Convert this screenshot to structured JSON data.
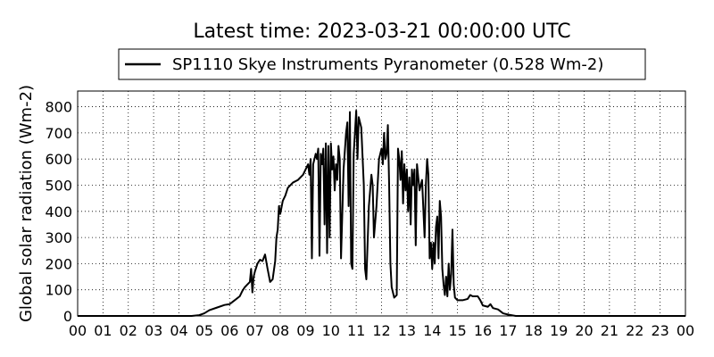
{
  "chart_data": {
    "type": "line",
    "title": "Latest time: 2023-03-21 00:00:00 UTC",
    "ylabel": "Global solar radiation (Wm-2)",
    "x": [
      0,
      4.5,
      4.8,
      5.0,
      5.2,
      5.5,
      5.8,
      6.0,
      6.2,
      6.4,
      6.5,
      6.6,
      6.7,
      6.8,
      6.85,
      6.9,
      6.95,
      7.0,
      7.1,
      7.2,
      7.3,
      7.4,
      7.5,
      7.6,
      7.7,
      7.8,
      7.85,
      7.9,
      7.95,
      8.0,
      8.1,
      8.2,
      8.3,
      8.5,
      8.7,
      8.9,
      9.0,
      9.1,
      9.15,
      9.2,
      9.25,
      9.3,
      9.4,
      9.45,
      9.5,
      9.55,
      9.6,
      9.65,
      9.7,
      9.75,
      9.8,
      9.85,
      9.9,
      9.95,
      10.0,
      10.05,
      10.1,
      10.15,
      10.2,
      10.25,
      10.3,
      10.35,
      10.4,
      10.5,
      10.6,
      10.65,
      10.7,
      10.75,
      10.8,
      10.85,
      10.9,
      10.95,
      11.0,
      11.05,
      11.1,
      11.2,
      11.3,
      11.35,
      11.4,
      11.5,
      11.6,
      11.65,
      11.7,
      11.8,
      11.9,
      12.0,
      12.05,
      12.1,
      12.15,
      12.2,
      12.25,
      12.3,
      12.35,
      12.4,
      12.5,
      12.6,
      12.65,
      12.7,
      12.75,
      12.8,
      12.85,
      12.9,
      12.95,
      13.0,
      13.05,
      13.1,
      13.15,
      13.2,
      13.25,
      13.3,
      13.35,
      13.4,
      13.5,
      13.6,
      13.7,
      13.75,
      13.8,
      13.85,
      13.9,
      13.95,
      14.0,
      14.05,
      14.1,
      14.15,
      14.2,
      14.25,
      14.3,
      14.35,
      14.4,
      14.45,
      14.5,
      14.55,
      14.6,
      14.65,
      14.7,
      14.75,
      14.8,
      14.85,
      14.9,
      15.0,
      15.2,
      15.4,
      15.5,
      15.6,
      15.8,
      15.9,
      16.0,
      16.2,
      16.3,
      16.4,
      16.6,
      16.8,
      17.0,
      17.3,
      24
    ],
    "series": [
      {
        "name": "SP1110 Skye Instruments Pyranometer (0.528 Wm-2)",
        "color": "#000000",
        "values": [
          0,
          0,
          3,
          10,
          22,
          32,
          42,
          45,
          60,
          75,
          95,
          110,
          120,
          130,
          180,
          90,
          150,
          170,
          200,
          215,
          210,
          235,
          180,
          130,
          140,
          210,
          300,
          330,
          420,
          390,
          440,
          460,
          490,
          510,
          520,
          540,
          560,
          580,
          540,
          600,
          220,
          580,
          620,
          600,
          640,
          230,
          620,
          580,
          640,
          350,
          660,
          240,
          650,
          300,
          660,
          560,
          610,
          480,
          580,
          520,
          650,
          600,
          220,
          560,
          700,
          740,
          420,
          780,
          200,
          180,
          620,
          700,
          785,
          600,
          760,
          720,
          500,
          180,
          140,
          420,
          540,
          500,
          300,
          420,
          600,
          640,
          580,
          700,
          600,
          620,
          730,
          500,
          200,
          110,
          70,
          80,
          640,
          600,
          520,
          630,
          430,
          580,
          480,
          560,
          400,
          530,
          350,
          560,
          500,
          560,
          270,
          580,
          480,
          520,
          300,
          500,
          600,
          540,
          220,
          280,
          180,
          280,
          200,
          340,
          380,
          220,
          440,
          380,
          180,
          120,
          80,
          150,
          75,
          200,
          100,
          160,
          330,
          120,
          70,
          60,
          60,
          65,
          80,
          75,
          75,
          60,
          40,
          35,
          45,
          30,
          25,
          10,
          5,
          0,
          0
        ]
      }
    ],
    "xlim": [
      0,
      24
    ],
    "xticks": [
      {
        "value": 0,
        "label": "00"
      },
      {
        "value": 1,
        "label": "01"
      },
      {
        "value": 2,
        "label": "02"
      },
      {
        "value": 3,
        "label": "03"
      },
      {
        "value": 4,
        "label": "04"
      },
      {
        "value": 5,
        "label": "05"
      },
      {
        "value": 6,
        "label": "06"
      },
      {
        "value": 7,
        "label": "07"
      },
      {
        "value": 8,
        "label": "08"
      },
      {
        "value": 9,
        "label": "09"
      },
      {
        "value": 10,
        "label": "10"
      },
      {
        "value": 11,
        "label": "11"
      },
      {
        "value": 12,
        "label": "12"
      },
      {
        "value": 13,
        "label": "13"
      },
      {
        "value": 14,
        "label": "14"
      },
      {
        "value": 15,
        "label": "15"
      },
      {
        "value": 16,
        "label": "16"
      },
      {
        "value": 17,
        "label": "17"
      },
      {
        "value": 18,
        "label": "18"
      },
      {
        "value": 19,
        "label": "19"
      },
      {
        "value": 20,
        "label": "20"
      },
      {
        "value": 21,
        "label": "21"
      },
      {
        "value": 22,
        "label": "22"
      },
      {
        "value": 23,
        "label": "23"
      },
      {
        "value": 24,
        "label": "00"
      }
    ],
    "ylim": [
      0,
      860
    ],
    "yticks": [
      0,
      100,
      200,
      300,
      400,
      500,
      600,
      700,
      800
    ],
    "grid": true
  }
}
